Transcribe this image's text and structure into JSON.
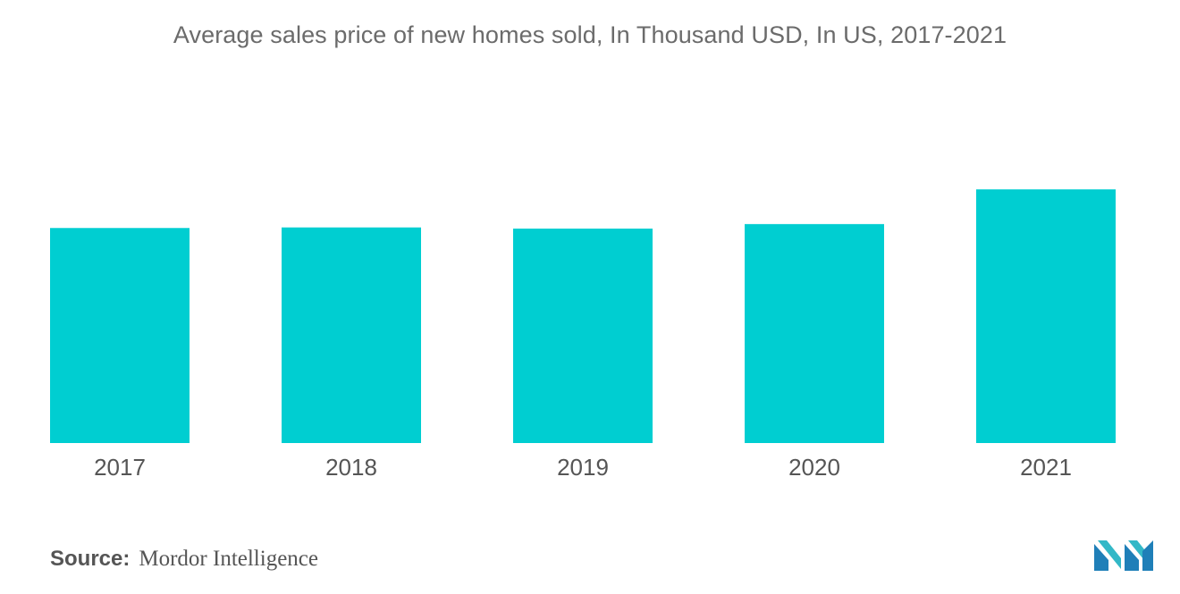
{
  "chart_data": {
    "type": "bar",
    "title": "Average sales price of new homes sold, In Thousand USD, In US, 2017-2021",
    "categories": [
      "2017",
      "2018",
      "2019",
      "2020",
      "2021"
    ],
    "values": [
      384,
      385,
      383,
      391,
      453
    ],
    "xlabel": "",
    "ylabel": "",
    "ylim": [
      0,
      453
    ],
    "grid": false,
    "legend": "none",
    "bar_color": "#00CED1"
  },
  "source": {
    "label": "Source:",
    "value": "Mordor Intelligence"
  },
  "brand": {
    "logo_icon": "mordor-intelligence-logo",
    "colors": [
      "#1f7fb8",
      "#33b8c7"
    ]
  }
}
